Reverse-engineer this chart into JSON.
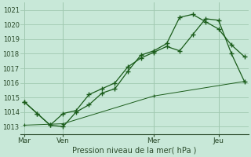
{
  "xlabel": "Pression niveau de la mer( hPa )",
  "bg_color": "#c8e8d8",
  "grid_color": "#a0c8b0",
  "line_color": "#1a5c1a",
  "ylim": [
    1012.5,
    1021.5
  ],
  "yticks": [
    1013,
    1014,
    1015,
    1016,
    1017,
    1018,
    1019,
    1020,
    1021
  ],
  "xtick_labels": [
    "Mar",
    "Ven",
    "Mer",
    "Jeu"
  ],
  "xtick_positions": [
    0,
    3,
    10,
    15
  ],
  "vlines": [
    0,
    3,
    10,
    15
  ],
  "xlim": [
    -0.3,
    17.3
  ],
  "series1_x": [
    0,
    1,
    2,
    3,
    4,
    5,
    6,
    7,
    8,
    9,
    10,
    11,
    12,
    13,
    14,
    15,
    16,
    17
  ],
  "series1_y": [
    1014.7,
    1013.9,
    1013.1,
    1013.9,
    1014.1,
    1015.2,
    1015.6,
    1016.0,
    1017.1,
    1017.7,
    1018.1,
    1018.5,
    1018.2,
    1019.3,
    1020.4,
    1020.3,
    1018.0,
    1016.1
  ],
  "series2_x": [
    0,
    1,
    2,
    3,
    4,
    5,
    6,
    7,
    8,
    9,
    10,
    11,
    12,
    13,
    14,
    15,
    16,
    17
  ],
  "series2_y": [
    1014.7,
    1013.9,
    1013.1,
    1013.0,
    1014.0,
    1014.5,
    1015.3,
    1015.6,
    1016.8,
    1017.9,
    1018.2,
    1018.7,
    1020.5,
    1020.7,
    1020.2,
    1019.7,
    1018.6,
    1017.8
  ],
  "series3_x": [
    0,
    3,
    10,
    17
  ],
  "series3_y": [
    1013.1,
    1013.2,
    1015.1,
    1016.1
  ]
}
